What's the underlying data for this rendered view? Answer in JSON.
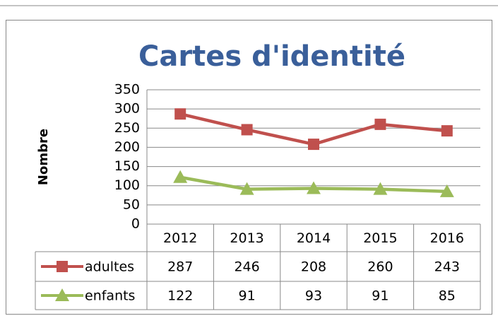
{
  "chart_data": {
    "type": "line",
    "title": "Cartes d'identité",
    "y_label": "Nombre",
    "categories": [
      "2012",
      "2013",
      "2014",
      "2015",
      "2016"
    ],
    "series": [
      {
        "name": "adultes",
        "color": "#c0504d",
        "marker": "square",
        "values": [
          287,
          246,
          208,
          260,
          243
        ]
      },
      {
        "name": "enfants",
        "color": "#9bbb59",
        "marker": "triangle",
        "values": [
          122,
          91,
          93,
          91,
          85
        ]
      }
    ],
    "ylim": [
      0,
      350
    ],
    "yticks": [
      0,
      50,
      100,
      150,
      200,
      250,
      300,
      350
    ],
    "grid": true,
    "data_table": true
  }
}
